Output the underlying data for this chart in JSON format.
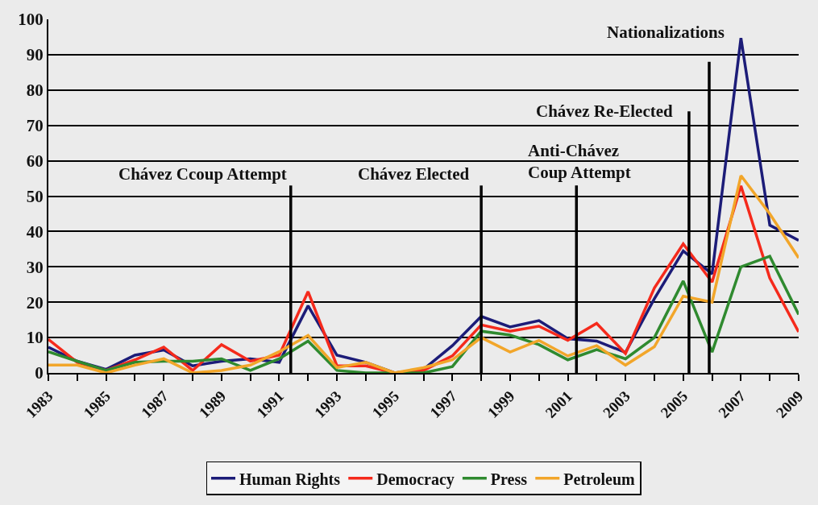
{
  "chart_data": {
    "type": "line",
    "x": [
      1983,
      1984,
      1985,
      1986,
      1987,
      1988,
      1989,
      1990,
      1991,
      1992,
      1993,
      1994,
      1995,
      1996,
      1997,
      1998,
      1999,
      2000,
      2001,
      2002,
      2003,
      2004,
      2005,
      2006,
      2007,
      2008,
      2009
    ],
    "series": [
      {
        "name": "Human Rights",
        "color": "#1c1c78",
        "values": [
          7.3,
          3.3,
          1,
          5,
          6.5,
          2,
          3.3,
          4,
          3,
          19,
          5,
          3,
          0,
          1,
          7.7,
          16,
          13,
          14.8,
          9.7,
          9,
          5.8,
          21,
          34.5,
          28,
          94.7,
          41.8,
          37.5
        ]
      },
      {
        "name": "Democracy",
        "color": "#f52a1c",
        "values": [
          9.5,
          3,
          0.7,
          3.7,
          7.3,
          0.7,
          8,
          3.3,
          5,
          23,
          2,
          2,
          0,
          0.7,
          4.8,
          13.6,
          11.8,
          13.2,
          9.2,
          14,
          5.5,
          24,
          36.5,
          25.7,
          52.9,
          26.8,
          11.6
        ]
      },
      {
        "name": "Press",
        "color": "#2f8a2f",
        "values": [
          6,
          3.3,
          0.7,
          3,
          3.3,
          3.3,
          4,
          0.7,
          4,
          9,
          0.7,
          0,
          0,
          0,
          1.8,
          11.8,
          10.7,
          8,
          3.7,
          6.6,
          4,
          10,
          26,
          5.9,
          30,
          33,
          16.5
        ]
      },
      {
        "name": "Petroleum",
        "color": "#f2a62a",
        "values": [
          2.2,
          2.2,
          0,
          2.2,
          4,
          0,
          0.7,
          2.2,
          6,
          10.6,
          1.5,
          3,
          0,
          1.5,
          3.7,
          10,
          5.9,
          9.2,
          4.8,
          7.7,
          2.2,
          7.4,
          21.7,
          20,
          55.8,
          45,
          32.5
        ]
      }
    ],
    "xlim": [
      1983,
      2009
    ],
    "xticks": [
      1983,
      {
        "value": 1984,
        "label": null
      },
      1985,
      {
        "value": 1986,
        "label": null
      },
      1987,
      {
        "value": 1988,
        "label": null
      },
      1989,
      {
        "value": 1990,
        "label": null
      },
      1991,
      {
        "value": 1992,
        "label": null
      },
      1993,
      {
        "value": 1994,
        "label": null
      },
      1995,
      {
        "value": 1996,
        "label": null
      },
      1997,
      {
        "value": 1998,
        "label": null
      },
      1999,
      {
        "value": 2000,
        "label": null
      },
      2001,
      {
        "value": 2002,
        "label": null
      },
      2003,
      {
        "value": 2004,
        "label": null
      },
      2005,
      {
        "value": 2006,
        "label": null
      },
      2007,
      {
        "value": 2008,
        "label": null
      },
      2009
    ],
    "ylim": [
      0,
      100
    ],
    "yticks": [
      0,
      10,
      20,
      30,
      40,
      50,
      60,
      70,
      80,
      90,
      100
    ],
    "grid": "y",
    "legend": "bottom",
    "marker": "none",
    "line_style": "solid",
    "ref_lines": [
      {
        "axis": "x",
        "value": 1991.4,
        "color": "#000000"
      },
      {
        "axis": "x",
        "value": 1998.0,
        "color": "#000000"
      },
      {
        "axis": "x",
        "value": 2001.3,
        "color": "#000000"
      },
      {
        "axis": "x",
        "value": 2005.2,
        "color": "#000000"
      },
      {
        "axis": "x",
        "value": 2005.9,
        "color": "#000000"
      }
    ],
    "annotations": [
      {
        "text": "Chávez Ccoup Attempt",
        "x": 1991.4,
        "y": 53
      },
      {
        "text": "Chávez Elected",
        "x": 1998.0,
        "y": 53
      },
      {
        "text": "Anti-Chávez\nCoup Attempt",
        "x": 2001.3,
        "y": 53
      },
      {
        "text": "Chávez Re-Elected",
        "x": 2005.2,
        "y": 74
      },
      {
        "text": "Nationalizations",
        "x": 2005.9,
        "y": 88
      }
    ]
  }
}
